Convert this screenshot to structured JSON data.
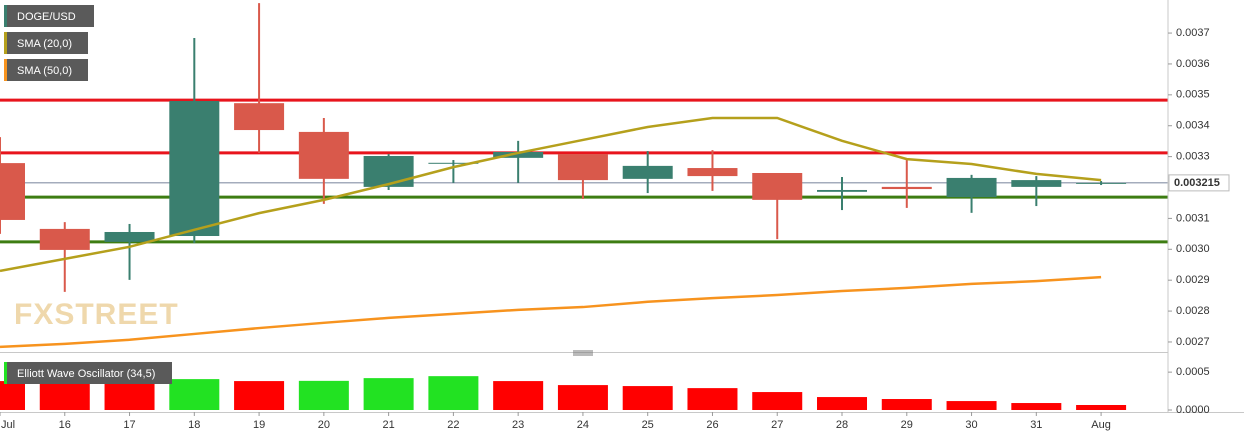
{
  "chart_data": [
    {
      "type": "candlestick",
      "title": "DOGE/USD",
      "categories": [
        "Jul",
        "16",
        "17",
        "18",
        "19",
        "20",
        "21",
        "22",
        "23",
        "24",
        "25",
        "26",
        "27",
        "28",
        "29",
        "30",
        "31",
        "Aug"
      ],
      "open": [
        0.003279,
        0.003066,
        0.003024,
        0.003043,
        0.003473,
        0.00338,
        0.003202,
        0.003277,
        0.003296,
        0.003308,
        0.003228,
        0.003263,
        0.003247,
        0.003186,
        0.003202,
        0.003169,
        0.003202,
        0.003213
      ],
      "high": [
        0.003363,
        0.003088,
        0.003082,
        0.003684,
        0.003797,
        0.003425,
        0.003308,
        0.003289,
        0.003351,
        0.003308,
        0.003318,
        0.003321,
        0.003247,
        0.003234,
        0.003289,
        0.003241,
        0.003237,
        0.003221
      ],
      "low": [
        0.00305,
        0.002862,
        0.002901,
        0.00302,
        0.003312,
        0.003147,
        0.003192,
        0.003215,
        0.003215,
        0.003163,
        0.003182,
        0.003189,
        0.003033,
        0.003127,
        0.003134,
        0.003118,
        0.00314,
        0.003208
      ],
      "close": [
        0.003095,
        0.002998,
        0.003056,
        0.00348,
        0.003386,
        0.003228,
        0.003302,
        0.00328,
        0.003315,
        0.003224,
        0.00327,
        0.003237,
        0.00316,
        0.003192,
        0.003195,
        0.003231,
        0.003224,
        0.003215
      ],
      "up_color": "#3a7f6f",
      "down_color": "#d9594b",
      "series": [
        {
          "name": "SMA (20,0)",
          "color": "#b5a01c",
          "values": [
            0.00293,
            0.002969,
            0.003008,
            0.003063,
            0.003117,
            0.00316,
            0.003211,
            0.003266,
            0.003312,
            0.003354,
            0.003396,
            0.003425,
            0.003425,
            0.003351,
            0.003292,
            0.003276,
            0.003244,
            0.003224
          ]
        },
        {
          "name": "SMA (50,0)",
          "color": "#f7931e",
          "values": [
            0.002684,
            0.002694,
            0.002707,
            0.002726,
            0.002745,
            0.002762,
            0.002778,
            0.002791,
            0.002804,
            0.002813,
            0.00283,
            0.002842,
            0.002852,
            0.002865,
            0.002875,
            0.002888,
            0.002897,
            0.00291
          ]
        }
      ],
      "levels": [
        {
          "value": 0.003483,
          "color": "#e8141c"
        },
        {
          "value": 0.003312,
          "color": "#e8141c"
        },
        {
          "value": 0.003169,
          "color": "#3d7d12"
        },
        {
          "value": 0.003024,
          "color": "#3d7d12"
        }
      ],
      "last_price": 0.003215,
      "watermark": "FXSTREET",
      "ylim": [
        0.002674,
        0.003807
      ],
      "yticks": [
        0.0027,
        0.0028,
        0.0029,
        {
          "value": 0.003,
          "label": "0.0030"
        },
        0.0031,
        0.0033,
        0.0034,
        0.0035,
        0.0036,
        0.0037
      ]
    },
    {
      "type": "bar",
      "title": "Elliott Wave Oscillator (34,5)",
      "values": [
        0.000382,
        0.000382,
        0.00038,
        0.000408,
        0.000382,
        0.000385,
        0.000421,
        0.000447,
        0.000382,
        0.000329,
        0.000316,
        0.000289,
        0.000237,
        0.000171,
        0.000145,
        0.000118,
        9.2e-05,
        6.6e-05
      ],
      "colors": [
        "#ff0000",
        "#ff0000",
        "#ff0000",
        "#22e222",
        "#ff0000",
        "#22e222",
        "#22e222",
        "#22e222",
        "#ff0000",
        "#ff0000",
        "#ff0000",
        "#ff0000",
        "#ff0000",
        "#ff0000",
        "#ff0000",
        "#ff0000",
        "#ff0000",
        "#ff0000"
      ],
      "ylim": [
        0,
        0.0007
      ],
      "yticks": [
        {
          "value": 0,
          "label": "0.0000"
        },
        0.0005
      ]
    }
  ]
}
